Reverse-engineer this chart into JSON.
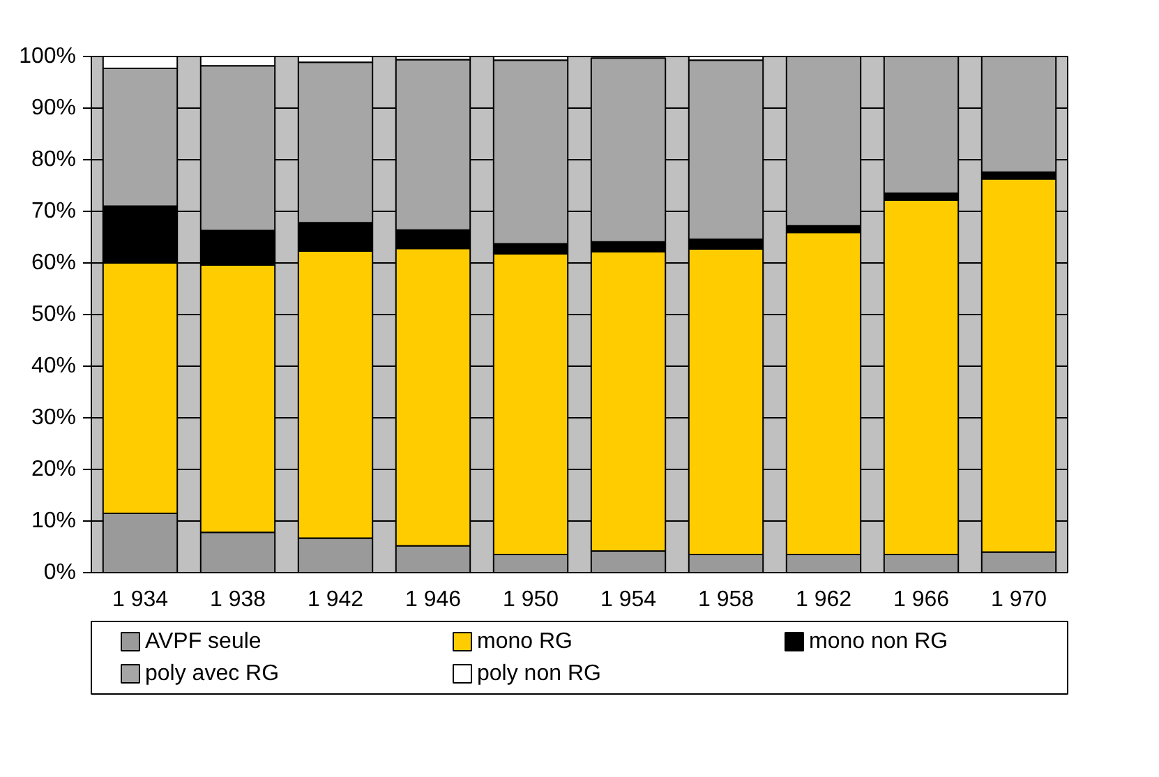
{
  "chart_data": {
    "type": "bar",
    "stacked": true,
    "categories": [
      "1 934",
      "1 938",
      "1 942",
      "1 946",
      "1 950",
      "1 954",
      "1 958",
      "1 962",
      "1 966",
      "1 970"
    ],
    "series": [
      {
        "name": "AVPF seule",
        "color": "#9a9a9a",
        "values": [
          11.5,
          7.8,
          6.7,
          5.2,
          3.5,
          4.2,
          3.5,
          3.5,
          3.5,
          4.0
        ]
      },
      {
        "name": "mono RG",
        "color": "#ffcc00",
        "values": [
          48.5,
          51.8,
          55.6,
          57.6,
          58.3,
          58.0,
          59.2,
          62.4,
          68.7,
          72.3
        ]
      },
      {
        "name": "mono non RG",
        "color": "#000000",
        "values": [
          11.0,
          6.7,
          5.5,
          3.6,
          1.9,
          1.9,
          1.9,
          1.3,
          1.3,
          1.3
        ]
      },
      {
        "name": "poly avec RG",
        "color": "#a6a6a6",
        "values": [
          26.7,
          31.9,
          31.1,
          33.0,
          35.6,
          35.6,
          34.7,
          32.8,
          26.5,
          22.4
        ]
      },
      {
        "name": "poly non RG",
        "color": "#ffffff",
        "values": [
          2.3,
          1.8,
          1.1,
          0.6,
          0.7,
          null,
          0.7,
          0,
          0,
          0
        ]
      }
    ],
    "ylim": [
      0,
      100
    ],
    "yticks": [
      {
        "value": 0,
        "label": "0%"
      },
      {
        "value": 10,
        "label": "10%"
      },
      {
        "value": 20,
        "label": "20%"
      },
      {
        "value": 30,
        "label": "30%"
      },
      {
        "value": 40,
        "label": "40%"
      },
      {
        "value": 50,
        "label": "50%"
      },
      {
        "value": 60,
        "label": "60%"
      },
      {
        "value": 70,
        "label": "70%"
      },
      {
        "value": 80,
        "label": "80%"
      },
      {
        "value": 90,
        "label": "90%"
      },
      {
        "value": 100,
        "label": "100%"
      }
    ],
    "grid": "y",
    "legend": "bottom"
  }
}
